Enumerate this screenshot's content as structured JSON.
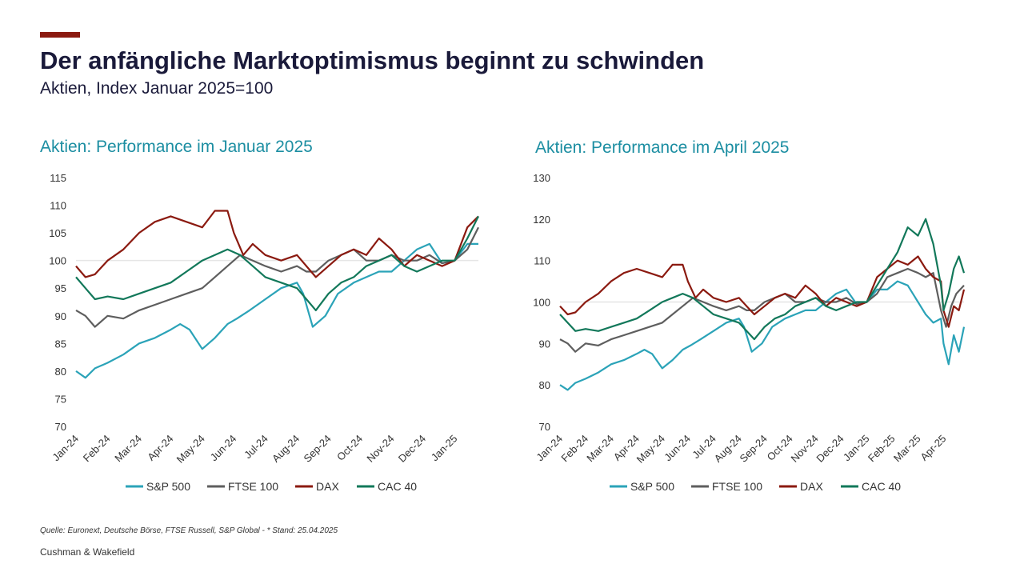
{
  "header": {
    "title": "Der anfängliche Marktoptimismus beginnt zu schwinden",
    "subtitle": "Aktien, Index Januar 2025=100"
  },
  "footer": {
    "source": "Quelle: Euronext, Deutsche Börse, FTSE Russell, S&P Global - * Stand: 25.04.2025",
    "brand": "Cushman & Wakefield"
  },
  "colors": {
    "S&P 500": "#2ba3b8",
    "FTSE 100": "#5e5e5e",
    "DAX": "#8b1a10",
    "CAC 40": "#12785a",
    "title_accent": "#8b1a10",
    "chart_title": "#1c8ea2"
  },
  "chart_data": [
    {
      "type": "line",
      "title": "Aktien: Performance im Januar 2025",
      "xlabel": "",
      "ylabel": "",
      "ylim": [
        70,
        115
      ],
      "yticks": [
        70,
        75,
        80,
        85,
        90,
        95,
        100,
        105,
        110,
        115
      ],
      "reference_line": 100,
      "grid": false,
      "legend": "bottom",
      "categories": [
        "Jan-24",
        "Feb-24",
        "Mar-24",
        "Apr-24",
        "May-24",
        "Jun-24",
        "Jul-24",
        "Aug-24",
        "Sep-24",
        "Oct-24",
        "Nov-24",
        "Dec-24",
        "Jan-25"
      ],
      "x_end": 12.75,
      "series": [
        {
          "name": "S&P 500",
          "x": [
            0,
            0.3,
            0.6,
            1.0,
            1.5,
            2.0,
            2.5,
            3.0,
            3.3,
            3.6,
            4.0,
            4.4,
            4.8,
            5.1,
            5.5,
            6.0,
            6.5,
            7.0,
            7.2,
            7.5,
            7.9,
            8.3,
            8.8,
            9.2,
            9.6,
            10.0,
            10.4,
            10.8,
            11.2,
            11.6,
            12.0,
            12.4,
            12.75
          ],
          "values": [
            80,
            78.8,
            80.5,
            81.5,
            83,
            85,
            86,
            87.5,
            88.5,
            87.5,
            84,
            86,
            88.5,
            89.5,
            91,
            93,
            95,
            96,
            94,
            88,
            90,
            94,
            96,
            97,
            98,
            98,
            100,
            102,
            103,
            99.5,
            100,
            103,
            103
          ]
        },
        {
          "name": "FTSE 100",
          "x": [
            0,
            0.3,
            0.6,
            1.0,
            1.5,
            2.0,
            2.5,
            3.0,
            3.5,
            4.0,
            4.4,
            4.8,
            5.2,
            5.6,
            6.0,
            6.5,
            7.0,
            7.3,
            7.6,
            8.0,
            8.4,
            8.8,
            9.2,
            9.6,
            10.0,
            10.4,
            10.8,
            11.2,
            11.6,
            12.0,
            12.4,
            12.75
          ],
          "values": [
            91,
            90,
            88,
            90,
            89.5,
            91,
            92,
            93,
            94,
            95,
            97,
            99,
            101,
            100,
            99,
            98,
            99,
            98,
            98,
            100,
            101,
            102,
            100,
            100,
            101,
            100,
            100,
            101,
            99.5,
            100,
            102,
            106
          ]
        },
        {
          "name": "DAX",
          "x": [
            0,
            0.3,
            0.6,
            1.0,
            1.5,
            2.0,
            2.5,
            3.0,
            3.5,
            4.0,
            4.4,
            4.8,
            5.0,
            5.3,
            5.6,
            6.0,
            6.5,
            7.0,
            7.3,
            7.6,
            8.0,
            8.4,
            8.8,
            9.2,
            9.6,
            10.0,
            10.4,
            10.8,
            11.2,
            11.6,
            12.0,
            12.4,
            12.75
          ],
          "values": [
            99,
            97,
            97.5,
            100,
            102,
            105,
            107,
            108,
            107,
            106,
            109,
            109,
            105,
            101,
            103,
            101,
            100,
            101,
            99,
            97,
            99,
            101,
            102,
            101,
            104,
            102,
            99,
            101,
            100,
            99,
            100,
            106,
            108
          ]
        },
        {
          "name": "CAC 40",
          "x": [
            0,
            0.3,
            0.6,
            1.0,
            1.5,
            2.0,
            2.5,
            3.0,
            3.5,
            4.0,
            4.4,
            4.8,
            5.2,
            5.6,
            6.0,
            6.5,
            7.0,
            7.3,
            7.6,
            8.0,
            8.4,
            8.8,
            9.2,
            9.6,
            10.0,
            10.4,
            10.8,
            11.2,
            11.6,
            12.0,
            12.4,
            12.75
          ],
          "values": [
            97,
            95,
            93,
            93.5,
            93,
            94,
            95,
            96,
            98,
            100,
            101,
            102,
            101,
            99,
            97,
            96,
            95,
            93,
            91,
            94,
            96,
            97,
            99,
            100,
            101,
            99,
            98,
            99,
            100,
            100,
            104,
            108
          ]
        }
      ]
    },
    {
      "type": "line",
      "title": "Aktien: Performance im April 2025",
      "xlabel": "",
      "ylabel": "",
      "ylim": [
        70,
        130
      ],
      "yticks": [
        70,
        80,
        90,
        100,
        110,
        120,
        130
      ],
      "reference_line": 100,
      "grid": false,
      "legend": "bottom",
      "categories": [
        "Jan-24",
        "Feb-24",
        "Mar-24",
        "Apr-24",
        "May-24",
        "Jun-24",
        "Jul-24",
        "Aug-24",
        "Sep-24",
        "Oct-24",
        "Nov-24",
        "Dec-24",
        "Jan-25",
        "Feb-25",
        "Mar-25",
        "Apr-25"
      ],
      "x_end": 15.8,
      "series": [
        {
          "name": "S&P 500",
          "x": [
            0,
            0.3,
            0.6,
            1.0,
            1.5,
            2.0,
            2.5,
            3.0,
            3.3,
            3.6,
            4.0,
            4.4,
            4.8,
            5.1,
            5.5,
            6.0,
            6.5,
            7.0,
            7.2,
            7.5,
            7.9,
            8.3,
            8.8,
            9.2,
            9.6,
            10.0,
            10.4,
            10.8,
            11.2,
            11.6,
            12.0,
            12.4,
            12.8,
            13.2,
            13.6,
            14.0,
            14.3,
            14.6,
            14.9,
            15.0,
            15.2,
            15.4,
            15.6,
            15.8
          ],
          "values": [
            80,
            78.8,
            80.5,
            81.5,
            83,
            85,
            86,
            87.5,
            88.5,
            87.5,
            84,
            86,
            88.5,
            89.5,
            91,
            93,
            95,
            96,
            94,
            88,
            90,
            94,
            96,
            97,
            98,
            98,
            100,
            102,
            103,
            99.5,
            100,
            103,
            103,
            105,
            104,
            100,
            97,
            95,
            96,
            90,
            85,
            92,
            88,
            94
          ]
        },
        {
          "name": "FTSE 100",
          "x": [
            0,
            0.3,
            0.6,
            1.0,
            1.5,
            2.0,
            2.5,
            3.0,
            3.5,
            4.0,
            4.4,
            4.8,
            5.2,
            5.6,
            6.0,
            6.5,
            7.0,
            7.3,
            7.6,
            8.0,
            8.4,
            8.8,
            9.2,
            9.6,
            10.0,
            10.4,
            10.8,
            11.2,
            11.6,
            12.0,
            12.4,
            12.8,
            13.2,
            13.6,
            14.0,
            14.3,
            14.6,
            14.9,
            15.1,
            15.3,
            15.5,
            15.8
          ],
          "values": [
            91,
            90,
            88,
            90,
            89.5,
            91,
            92,
            93,
            94,
            95,
            97,
            99,
            101,
            100,
            99,
            98,
            99,
            98,
            98,
            100,
            101,
            102,
            100,
            100,
            101,
            100,
            100,
            101,
            99.5,
            100,
            102,
            106,
            107,
            108,
            107,
            106,
            107,
            98,
            94,
            99,
            102,
            104
          ]
        },
        {
          "name": "DAX",
          "x": [
            0,
            0.3,
            0.6,
            1.0,
            1.5,
            2.0,
            2.5,
            3.0,
            3.5,
            4.0,
            4.4,
            4.8,
            5.0,
            5.3,
            5.6,
            6.0,
            6.5,
            7.0,
            7.3,
            7.6,
            8.0,
            8.4,
            8.8,
            9.2,
            9.6,
            10.0,
            10.4,
            10.8,
            11.2,
            11.6,
            12.0,
            12.4,
            12.8,
            13.2,
            13.6,
            14.0,
            14.3,
            14.6,
            14.9,
            15.0,
            15.2,
            15.4,
            15.6,
            15.8
          ],
          "values": [
            99,
            97,
            97.5,
            100,
            102,
            105,
            107,
            108,
            107,
            106,
            109,
            109,
            105,
            101,
            103,
            101,
            100,
            101,
            99,
            97,
            99,
            101,
            102,
            101,
            104,
            102,
            99,
            101,
            100,
            99,
            100,
            106,
            108,
            110,
            109,
            111,
            108,
            106,
            105,
            98,
            94,
            99,
            98,
            103
          ]
        },
        {
          "name": "CAC 40",
          "x": [
            0,
            0.3,
            0.6,
            1.0,
            1.5,
            2.0,
            2.5,
            3.0,
            3.5,
            4.0,
            4.4,
            4.8,
            5.2,
            5.6,
            6.0,
            6.5,
            7.0,
            7.3,
            7.6,
            8.0,
            8.4,
            8.8,
            9.2,
            9.6,
            10.0,
            10.4,
            10.8,
            11.2,
            11.6,
            12.0,
            12.4,
            12.8,
            13.2,
            13.6,
            14.0,
            14.3,
            14.6,
            14.9,
            15.0,
            15.2,
            15.4,
            15.6,
            15.8
          ],
          "values": [
            97,
            95,
            93,
            93.5,
            93,
            94,
            95,
            96,
            98,
            100,
            101,
            102,
            101,
            99,
            97,
            96,
            95,
            93,
            91,
            94,
            96,
            97,
            99,
            100,
            101,
            99,
            98,
            99,
            100,
            100,
            104,
            108,
            112,
            118,
            116,
            120,
            114,
            104,
            98,
            102,
            108,
            111,
            107
          ]
        }
      ]
    }
  ]
}
